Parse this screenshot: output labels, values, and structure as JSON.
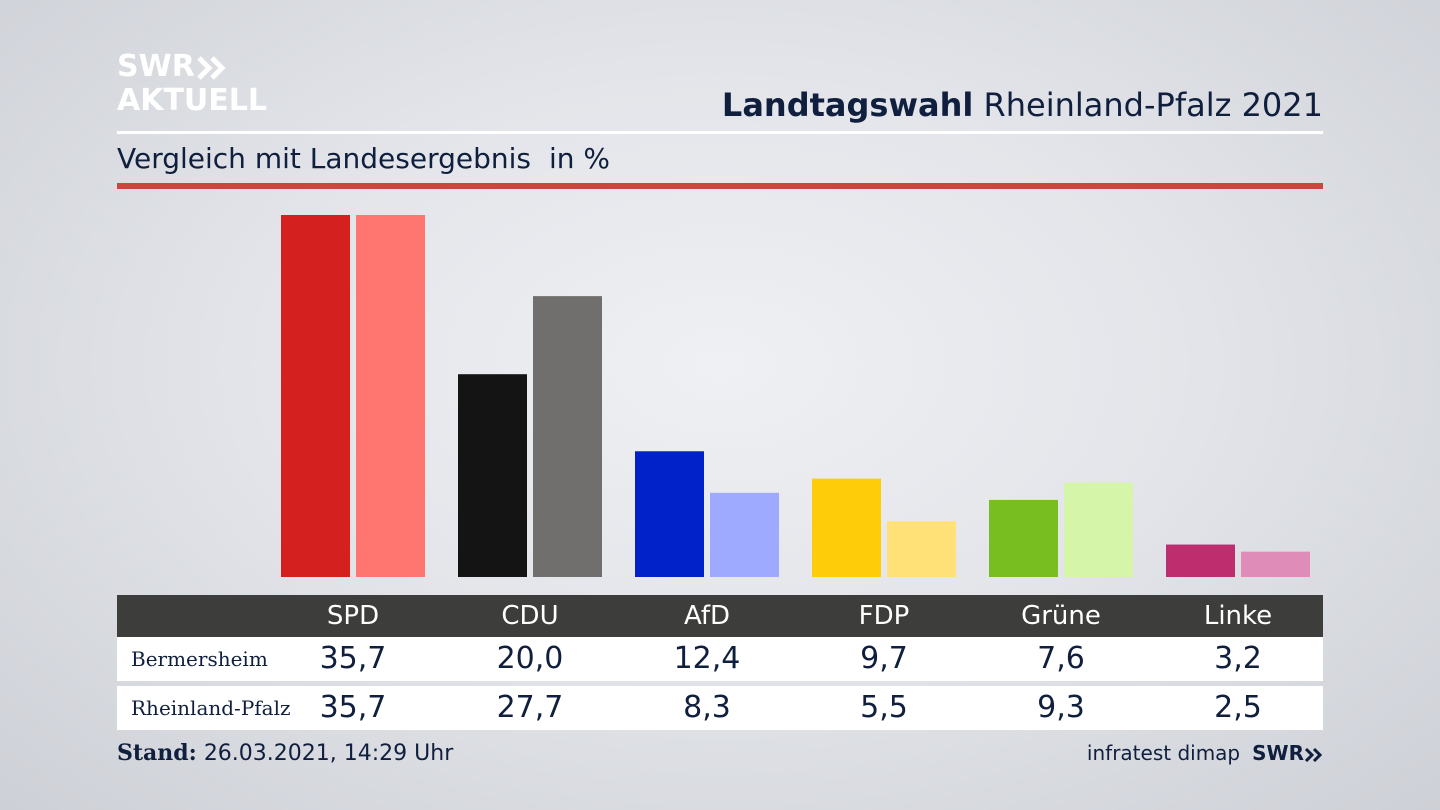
{
  "logo": {
    "line1": "SWR",
    "line2": "AKTUELL",
    "color": "#ffffff"
  },
  "header": {
    "title_bold": "Landtagswahl",
    "title_rest": "Rheinland-Pfalz 2021"
  },
  "subtitle": {
    "text": "Vergleich mit Landesergebnis",
    "unit": "in %"
  },
  "table": {
    "rows": [
      {
        "label": "Bermersheim",
        "values": [
          "35,7",
          "20,0",
          "12,4",
          "9,7",
          "7,6",
          "3,2"
        ]
      },
      {
        "label": "Rheinland-Pfalz",
        "values": [
          "35,7",
          "27,7",
          "8,3",
          "5,5",
          "9,3",
          "2,5"
        ]
      }
    ]
  },
  "footer": {
    "stand_label": "Stand:",
    "stand_value": "26.03.2021, 14:29 Uhr",
    "source": "infratest dimap",
    "brand": "SWR"
  },
  "chart_data": {
    "type": "bar",
    "categories": [
      "SPD",
      "CDU",
      "AfD",
      "FDP",
      "Grüne",
      "Linke"
    ],
    "series": [
      {
        "name": "Bermersheim",
        "values": [
          35.7,
          20.0,
          12.4,
          9.7,
          7.6,
          3.2
        ],
        "colors": [
          "#d52020",
          "#141414",
          "#0022c8",
          "#ffcc0a",
          "#78be20",
          "#be2d6e"
        ]
      },
      {
        "name": "Rheinland-Pfalz",
        "values": [
          35.7,
          27.7,
          8.3,
          5.5,
          9.3,
          2.5
        ],
        "colors": [
          "#ff7570",
          "#706f6d",
          "#9eaaff",
          "#ffe177",
          "#d5f5a8",
          "#e08cb8"
        ]
      }
    ],
    "ylim": [
      0,
      35.7
    ],
    "grid": false,
    "colors": {
      "accent_rule": "#c9473d",
      "table_header": "#3d3d3b",
      "text": "#0f1f3d"
    }
  }
}
